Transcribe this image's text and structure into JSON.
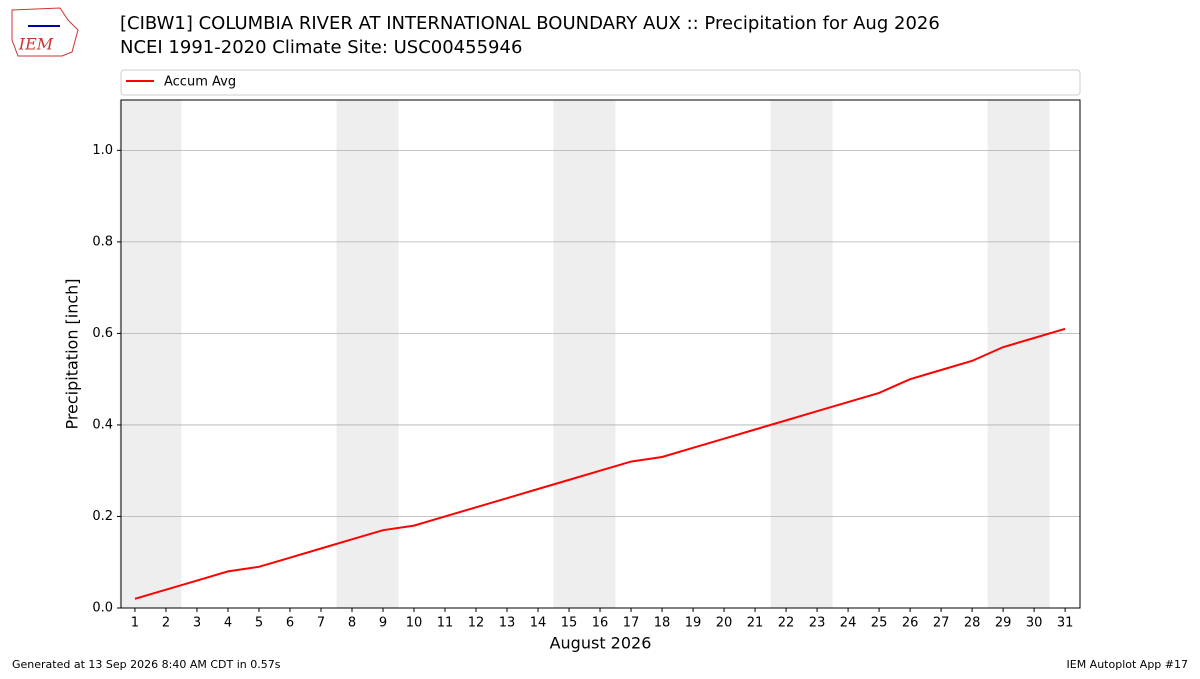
{
  "chart_data": {
    "type": "line",
    "title": "[CIBW1] COLUMBIA RIVER  AT INTERNATIONAL BOUNDARY AUX :: Precipitation for Aug 2026",
    "subtitle": "NCEI 1991-2020 Climate Site: USC00455946",
    "xlabel": "August 2026",
    "ylabel": "Precipitation [inch]",
    "x": [
      1,
      2,
      3,
      4,
      5,
      6,
      7,
      8,
      9,
      10,
      11,
      12,
      13,
      14,
      15,
      16,
      17,
      18,
      19,
      20,
      21,
      22,
      23,
      24,
      25,
      26,
      27,
      28,
      29,
      30,
      31
    ],
    "series": [
      {
        "name": "Accum Avg",
        "color": "#ff0000",
        "values": [
          0.02,
          0.04,
          0.06,
          0.08,
          0.09,
          0.11,
          0.13,
          0.15,
          0.17,
          0.18,
          0.2,
          0.22,
          0.24,
          0.26,
          0.28,
          0.3,
          0.32,
          0.33,
          0.35,
          0.37,
          0.39,
          0.41,
          0.43,
          0.45,
          0.47,
          0.5,
          0.52,
          0.54,
          0.57,
          0.59,
          0.61
        ]
      }
    ],
    "xlim": [
      0.55,
      31.48
    ],
    "ylim": [
      0,
      1.11
    ],
    "xticks": [
      1,
      2,
      3,
      4,
      5,
      6,
      7,
      8,
      9,
      10,
      11,
      12,
      13,
      14,
      15,
      16,
      17,
      18,
      19,
      20,
      21,
      22,
      23,
      24,
      25,
      26,
      27,
      28,
      29,
      30,
      31
    ],
    "yticks": [
      {
        "value": 0,
        "label": "0.0"
      },
      0.2,
      0.4,
      0.6,
      0.8,
      {
        "value": 1,
        "label": "1.0"
      }
    ],
    "shaded_ranges": [
      [
        0.5,
        2.5
      ],
      [
        7.5,
        9.5
      ],
      [
        14.5,
        16.5
      ],
      [
        21.5,
        23.5
      ],
      [
        28.5,
        30.5
      ]
    ],
    "shade_color": "#eeeeee",
    "grid": "y",
    "legend": "top"
  },
  "logo_text": "IEM",
  "footer_left": "Generated at 13 Sep 2026 8:40 AM CDT in 0.57s",
  "footer_right": "IEM Autoplot App #17"
}
